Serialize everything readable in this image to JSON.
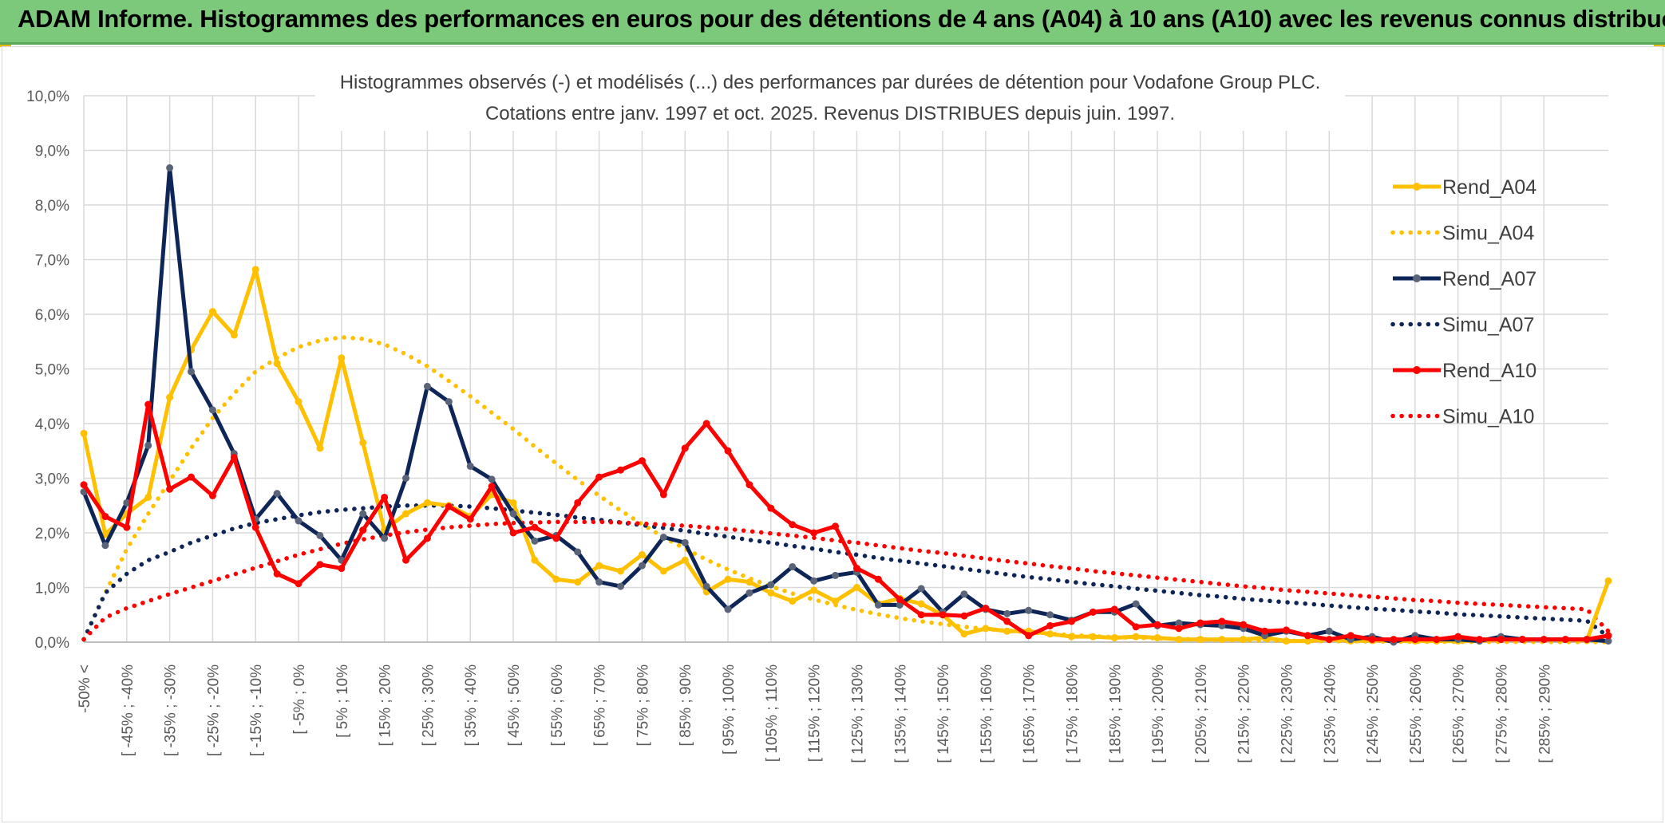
{
  "banner": {
    "title": "ADAM Informe. Histogrammes des performances en euros pour des détentions de 4 ans (A04) à 10 ans (A10) avec les revenus connus distribués"
  },
  "colors": {
    "banner_bg": "#7dc97b",
    "A04": "#ffc000",
    "A07": "#0e2557",
    "A10": "#ff0000",
    "grid": "#d9d9d9"
  },
  "chart_data": {
    "type": "line",
    "title": [
      "Histogrammes observés (-) et modélisés (...) des performances par durées de détention pour Vodafone Group PLC.",
      "Cotations entre janv. 1997 et oct. 2025. Revenus DISTRIBUES depuis juin. 1997."
    ],
    "xlabel": "",
    "ylabel": "",
    "ylim": [
      0,
      10
    ],
    "y_unit": "%",
    "y_ticks": [
      "0,0%",
      "1,0%",
      "2,0%",
      "3,0%",
      "4,0%",
      "5,0%",
      "6,0%",
      "7,0%",
      "8,0%",
      "9,0%",
      "10,0%"
    ],
    "grid": true,
    "legend_position": "right",
    "x_labels": [
      "-50% <",
      "[ -45% ; -40%",
      "[ -35% ; -30%",
      "[ -25% ; -20%",
      "[ -15% ; -10%",
      "[ -5% ; 0%",
      "[ 5% ; 10%",
      "[ 15% ; 20%",
      "[ 25% ; 30%",
      "[ 35% ; 40%",
      "[ 45% ; 50%",
      "[ 55% ; 60%",
      "[ 65% ; 70%",
      "[ 75% ; 80%",
      "[ 85% ; 90%",
      "[ 95% ; 100%",
      "[ 105% ; 110%",
      "[ 115% ; 120%",
      "[ 125% ; 130%",
      "[ 135% ; 140%",
      "[ 145% ; 150%",
      "[ 155% ; 160%",
      "[ 165% ; 170%",
      "[ 175% ; 180%",
      "[ 185% ; 190%",
      "[ 195% ; 200%",
      "[ 205% ; 210%",
      "[ 215% ; 220%",
      "[ 225% ; 230%",
      "[ 235% ; 240%",
      "[ 245% ; 250%",
      "[ 255% ; 260%",
      "[ 265% ; 270%",
      "[ 275% ; 280%",
      "[ 285% ; 290%"
    ],
    "series": [
      {
        "name": "Rend_A04",
        "style": "solid",
        "markers": true,
        "color": "#ffc000",
        "values": [
          3.82,
          1.97,
          2.35,
          2.65,
          4.48,
          5.35,
          6.05,
          5.62,
          6.82,
          5.1,
          4.4,
          3.55,
          5.2,
          3.65,
          2.05,
          2.35,
          2.55,
          2.5,
          2.3,
          2.7,
          2.55,
          1.5,
          1.15,
          1.1,
          1.4,
          1.3,
          1.6,
          1.3,
          1.5,
          0.92,
          1.15,
          1.1,
          0.9,
          0.75,
          0.95,
          0.75,
          1.0,
          0.7,
          0.8,
          0.7,
          0.5,
          0.15,
          0.25,
          0.2,
          0.2,
          0.15,
          0.1,
          0.1,
          0.08,
          0.1,
          0.08,
          0.05,
          0.05,
          0.05,
          0.05,
          0.08,
          0.02,
          0.02,
          0.05,
          0.02,
          0.03,
          0.02,
          0.02,
          0.02,
          0.02,
          0.02,
          0.05,
          0.05,
          0.05,
          0.05,
          0.03,
          1.12
        ]
      },
      {
        "name": "Simu_A04",
        "style": "dotted",
        "markers": false,
        "color": "#ffc000",
        "values": [
          0.05,
          0.9,
          1.7,
          2.35,
          2.95,
          3.55,
          4.1,
          4.55,
          4.95,
          5.2,
          5.4,
          5.52,
          5.58,
          5.55,
          5.45,
          5.27,
          5.05,
          4.78,
          4.5,
          4.2,
          3.9,
          3.58,
          3.27,
          2.97,
          2.68,
          2.41,
          2.16,
          1.92,
          1.71,
          1.51,
          1.33,
          1.17,
          1.02,
          0.89,
          0.78,
          0.68,
          0.59,
          0.51,
          0.44,
          0.38,
          0.33,
          0.28,
          0.24,
          0.21,
          0.18,
          0.15,
          0.13,
          0.11,
          0.09,
          0.08,
          0.07,
          0.06,
          0.05,
          0.04,
          0.035,
          0.03,
          0.025,
          0.02,
          0.017,
          0.014,
          0.012,
          0.01,
          0.008,
          0.007,
          0.006,
          0.005,
          0.004,
          0.003,
          0.003,
          0.002,
          0.002,
          0.002
        ]
      },
      {
        "name": "Rend_A07",
        "style": "solid",
        "markers": true,
        "color": "#0e2557",
        "values": [
          2.75,
          1.77,
          2.55,
          3.6,
          8.68,
          4.95,
          4.25,
          3.45,
          2.25,
          2.72,
          2.22,
          1.95,
          1.5,
          2.35,
          1.9,
          3.0,
          4.68,
          4.4,
          3.22,
          2.98,
          2.35,
          1.85,
          1.95,
          1.65,
          1.1,
          1.02,
          1.4,
          1.92,
          1.82,
          1.02,
          0.6,
          0.9,
          1.05,
          1.38,
          1.12,
          1.22,
          1.28,
          0.68,
          0.68,
          0.98,
          0.55,
          0.88,
          0.6,
          0.52,
          0.58,
          0.5,
          0.4,
          0.55,
          0.55,
          0.7,
          0.3,
          0.35,
          0.32,
          0.3,
          0.25,
          0.12,
          0.2,
          0.12,
          0.2,
          0.05,
          0.1,
          0.0,
          0.12,
          0.05,
          0.05,
          0.02,
          0.1,
          0.05,
          0.05,
          0.05,
          0.05,
          0.02
        ]
      },
      {
        "name": "Simu_A07",
        "style": "dotted",
        "markers": false,
        "color": "#0e2557",
        "values": [
          0.05,
          0.9,
          1.25,
          1.5,
          1.65,
          1.82,
          1.95,
          2.08,
          2.18,
          2.25,
          2.32,
          2.38,
          2.42,
          2.45,
          2.48,
          2.5,
          2.5,
          2.5,
          2.48,
          2.45,
          2.41,
          2.37,
          2.33,
          2.28,
          2.24,
          2.19,
          2.14,
          2.09,
          2.04,
          1.98,
          1.93,
          1.87,
          1.82,
          1.76,
          1.71,
          1.65,
          1.6,
          1.54,
          1.49,
          1.44,
          1.39,
          1.34,
          1.29,
          1.24,
          1.19,
          1.15,
          1.1,
          1.06,
          1.02,
          0.98,
          0.94,
          0.9,
          0.86,
          0.83,
          0.79,
          0.76,
          0.73,
          0.7,
          0.67,
          0.64,
          0.61,
          0.59,
          0.56,
          0.54,
          0.51,
          0.49,
          0.47,
          0.45,
          0.43,
          0.41,
          0.39,
          0.1
        ]
      },
      {
        "name": "Rend_A10",
        "style": "solid",
        "markers": true,
        "color": "#ff0000",
        "values": [
          2.88,
          2.3,
          2.1,
          4.35,
          2.8,
          3.02,
          2.68,
          3.38,
          2.1,
          1.25,
          1.07,
          1.42,
          1.35,
          2.05,
          2.65,
          1.5,
          1.9,
          2.48,
          2.25,
          2.85,
          2.0,
          2.1,
          1.9,
          2.55,
          3.02,
          3.15,
          3.32,
          2.7,
          3.55,
          4.0,
          3.5,
          2.88,
          2.45,
          2.15,
          2.0,
          2.12,
          1.35,
          1.15,
          0.78,
          0.5,
          0.5,
          0.48,
          0.62,
          0.38,
          0.12,
          0.3,
          0.38,
          0.55,
          0.6,
          0.28,
          0.32,
          0.25,
          0.35,
          0.38,
          0.32,
          0.2,
          0.22,
          0.12,
          0.05,
          0.12,
          0.05,
          0.05,
          0.05,
          0.05,
          0.1,
          0.05,
          0.05,
          0.05,
          0.05,
          0.05,
          0.05,
          0.12
        ]
      },
      {
        "name": "Simu_A10",
        "style": "dotted",
        "markers": false,
        "color": "#ff0000",
        "values": [
          0.05,
          0.45,
          0.62,
          0.75,
          0.88,
          1.0,
          1.12,
          1.24,
          1.36,
          1.48,
          1.6,
          1.7,
          1.8,
          1.88,
          1.95,
          2.01,
          2.06,
          2.1,
          2.13,
          2.16,
          2.18,
          2.19,
          2.2,
          2.2,
          2.2,
          2.19,
          2.17,
          2.15,
          2.13,
          2.1,
          2.07,
          2.03,
          1.99,
          1.95,
          1.91,
          1.86,
          1.82,
          1.77,
          1.72,
          1.67,
          1.63,
          1.58,
          1.53,
          1.48,
          1.44,
          1.39,
          1.35,
          1.3,
          1.26,
          1.22,
          1.18,
          1.14,
          1.1,
          1.06,
          1.02,
          0.99,
          0.95,
          0.92,
          0.89,
          0.86,
          0.83,
          0.8,
          0.77,
          0.75,
          0.72,
          0.7,
          0.68,
          0.66,
          0.64,
          0.62,
          0.6,
          0.2
        ]
      }
    ]
  }
}
